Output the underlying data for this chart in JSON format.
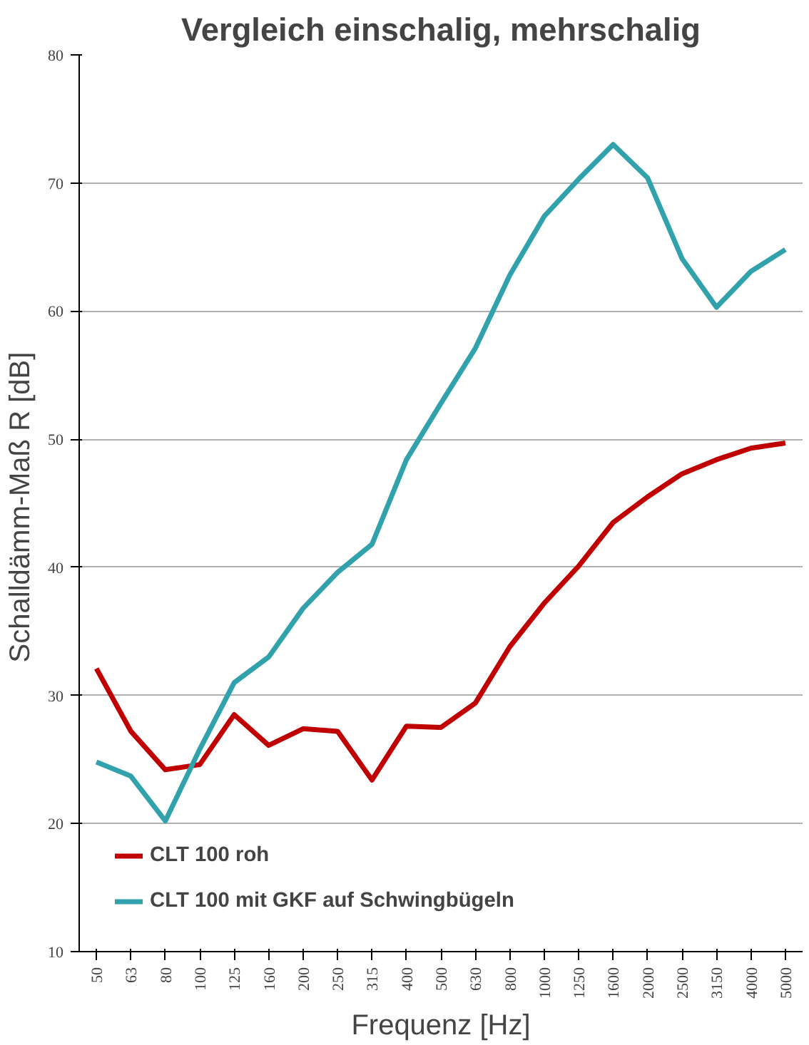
{
  "chart_data": {
    "type": "line",
    "title": "Vergleich einschalig, mehrschalig",
    "xlabel": "Frequenz [Hz]",
    "ylabel": "Schalldämm-Maß  R [dB]",
    "categories": [
      "50",
      "63",
      "80",
      "100",
      "125",
      "160",
      "200",
      "250",
      "315",
      "400",
      "500",
      "630",
      "800",
      "1000",
      "1250",
      "1600",
      "2000",
      "2500",
      "3150",
      "4000",
      "5000"
    ],
    "series": [
      {
        "name": "CLT 100 roh",
        "color": "#c00000",
        "values": [
          32.1,
          27.2,
          24.2,
          24.6,
          28.5,
          26.1,
          27.4,
          27.2,
          23.4,
          27.6,
          27.5,
          29.4,
          33.8,
          37.2,
          40.1,
          43.5,
          45.5,
          47.3,
          48.4,
          49.3,
          49.7
        ]
      },
      {
        "name": "CLT 100 mit GKF auf Schwingbügeln",
        "color": "#31a2ac",
        "values": [
          24.8,
          23.7,
          20.2,
          25.8,
          31.0,
          33.0,
          36.8,
          39.6,
          41.8,
          48.4,
          52.8,
          57.1,
          62.8,
          67.4,
          70.3,
          73.0,
          70.4,
          64.1,
          60.3,
          63.1,
          64.8
        ]
      }
    ],
    "ylim": [
      10,
      80
    ],
    "yticks": [
      10,
      20,
      30,
      40,
      50,
      60,
      70,
      80
    ],
    "grid": "y",
    "legend": "bottom left",
    "marker": "none",
    "line_style": "solid"
  }
}
